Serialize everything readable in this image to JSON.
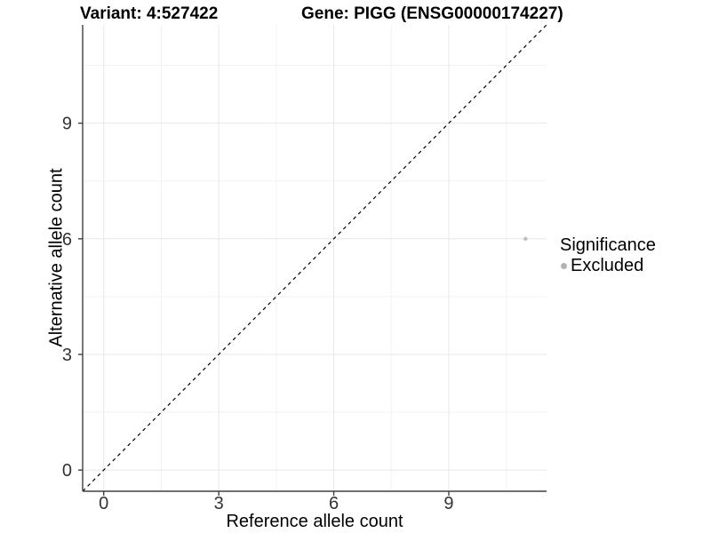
{
  "chart_data": {
    "type": "scatter",
    "titles": [
      "Variant: 4:527422",
      "Gene: PIGG (ENSG00000174227)"
    ],
    "xlabel": "Reference allele count",
    "ylabel": "Alternative allele count",
    "xlim": [
      -0.55,
      11.55
    ],
    "ylim": [
      -0.55,
      11.55
    ],
    "x_ticks": [
      0,
      3,
      6,
      9
    ],
    "y_ticks": [
      0,
      3,
      6,
      9
    ],
    "x_minor_ticks": [
      1.5,
      4.5,
      7.5,
      10.5
    ],
    "y_minor_ticks": [
      1.5,
      4.5,
      7.5,
      10.5
    ],
    "grid": true,
    "reference_line": {
      "kind": "identity",
      "slope": 1,
      "intercept": 0,
      "style": "dashed",
      "color": "#000000"
    },
    "series": [
      {
        "name": "Excluded",
        "color": "#bdbdbd",
        "point_radius": 2.2,
        "points": [
          {
            "x": 11,
            "y": 6
          }
        ]
      }
    ],
    "legend": {
      "title": "Significance",
      "position": "right",
      "entries": [
        {
          "label": "Excluded",
          "color": "#b3b3b3",
          "marker": "circle"
        }
      ]
    },
    "colors": {
      "background": "#ffffff",
      "grid_major": "#e7e7e7",
      "grid_minor": "#f2f2f2",
      "axis": "#404040",
      "tick_label": "#333333"
    }
  }
}
